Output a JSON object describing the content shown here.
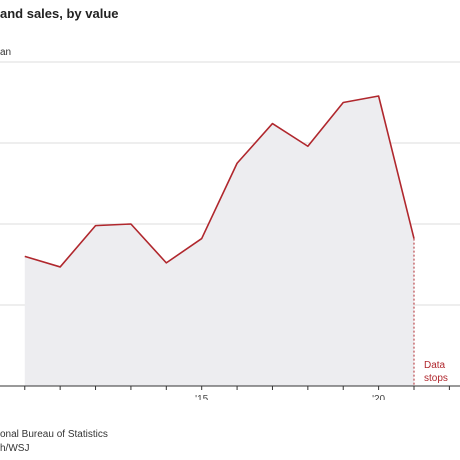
{
  "chart_data": {
    "type": "area",
    "title": "and sales, by value",
    "unit_label": "an",
    "x": [
      2010,
      2011,
      2012,
      2013,
      2014,
      2015,
      2016,
      2017,
      2018,
      2019,
      2020,
      2021,
      2022
    ],
    "values": [
      1.6,
      1.47,
      1.98,
      2.0,
      1.52,
      1.82,
      2.75,
      3.24,
      2.96,
      3.5,
      3.58,
      1.82
    ],
    "x_values": [
      2010,
      2011,
      2012,
      2013,
      2014,
      2015,
      2016,
      2017,
      2018,
      2019,
      2020,
      2021
    ],
    "x_ticks": [
      {
        "value": 2015,
        "label": "'15"
      },
      {
        "value": 2020,
        "label": "'20"
      }
    ],
    "xlim": [
      2009.3,
      2022.3
    ],
    "ylim": [
      0,
      4
    ],
    "y_gridlines": [
      0,
      1,
      2,
      3,
      4
    ],
    "annotation": {
      "line1": "Data",
      "line2": "stops",
      "x": 2021
    },
    "colors": {
      "line": "#b0272d",
      "fill": "#ededf0",
      "grid": "#dddddd",
      "axis": "#333333"
    },
    "grid": true
  },
  "source": {
    "line1": "onal Bureau of Statistics",
    "line2": "h/WSJ"
  }
}
